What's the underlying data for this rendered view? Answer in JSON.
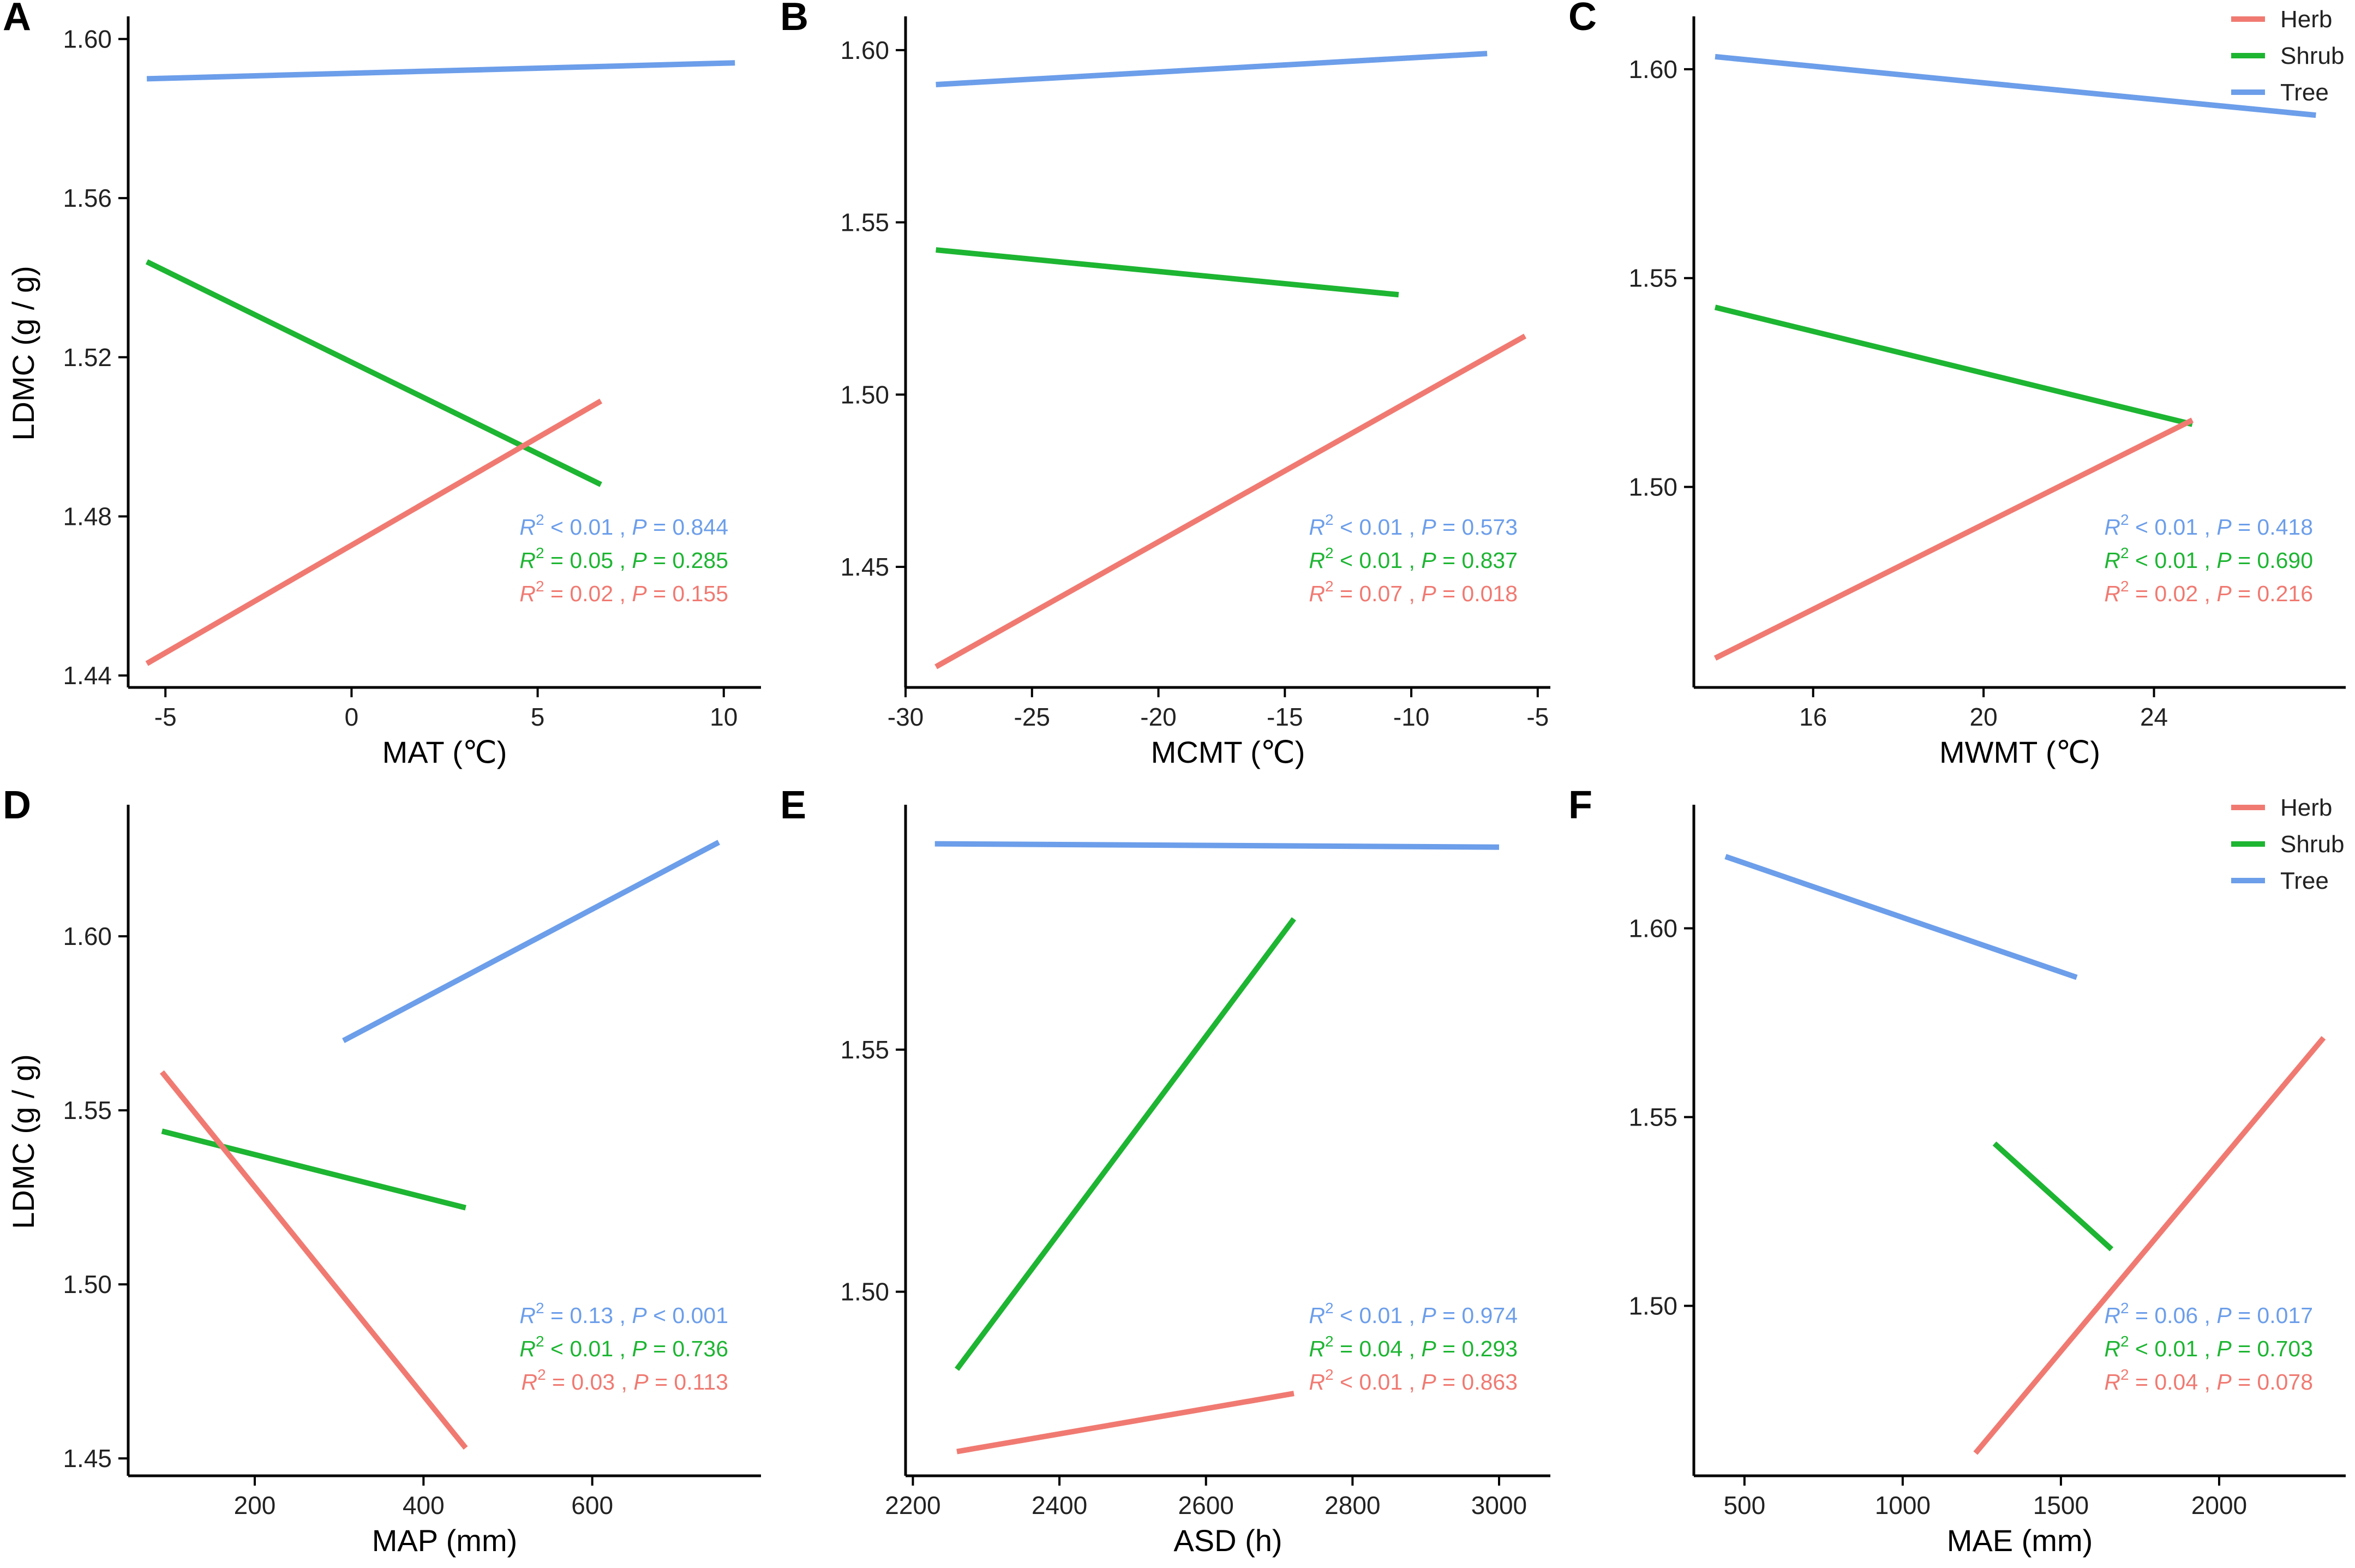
{
  "legend": {
    "title": "",
    "items": [
      {
        "label": "Herb",
        "color": "#F07A72"
      },
      {
        "label": "Shrub",
        "color": "#1DB532"
      },
      {
        "label": "Tree",
        "color": "#6C9EEA"
      }
    ]
  },
  "colors": {
    "herb": "#F07A72",
    "shrub": "#1DB532",
    "tree": "#6C9EEA",
    "axis": "#000000"
  },
  "chart_data": [
    {
      "panel": "A",
      "type": "line",
      "xlabel": "MAT (℃)",
      "ylabel": "LDMC (g / g)",
      "xlim": [
        -6,
        11
      ],
      "ylim": [
        1.437,
        1.605
      ],
      "xticks": [
        -5,
        0,
        5,
        10
      ],
      "xtick_labels": [
        "-5",
        "0",
        "5",
        "10"
      ],
      "yticks": [
        1.44,
        1.48,
        1.52,
        1.56,
        1.6
      ],
      "ytick_labels": [
        "1.44",
        "1.48",
        "1.52",
        "1.56",
        "1.60"
      ],
      "legend_shown": false,
      "series": [
        {
          "name": "Tree",
          "x": [
            -5.5,
            10.3
          ],
          "y": [
            1.59,
            1.594
          ]
        },
        {
          "name": "Shrub",
          "x": [
            -5.5,
            6.7
          ],
          "y": [
            1.544,
            1.488
          ]
        },
        {
          "name": "Herb",
          "x": [
            -5.5,
            6.7
          ],
          "y": [
            1.443,
            1.509
          ]
        }
      ],
      "annotations": [
        {
          "series": "Tree",
          "r2": "< 0.01",
          "p": "= 0.844"
        },
        {
          "series": "Shrub",
          "r2": "= 0.05",
          "p": "= 0.285"
        },
        {
          "series": "Herb",
          "r2": "= 0.02",
          "p": "= 0.155"
        }
      ]
    },
    {
      "panel": "B",
      "type": "line",
      "xlabel": "MCMT (℃)",
      "ylabel": "",
      "xlim": [
        -30,
        -4.5
      ],
      "ylim": [
        1.415,
        1.609
      ],
      "xticks": [
        -30,
        -25,
        -20,
        -15,
        -10,
        -5
      ],
      "xtick_labels": [
        "-30",
        "-25",
        "-20",
        "-15",
        "-10",
        "-5"
      ],
      "yticks": [
        1.45,
        1.5,
        1.55,
        1.6
      ],
      "ytick_labels": [
        "1.45",
        "1.50",
        "1.55",
        "1.60"
      ],
      "legend_shown": false,
      "series": [
        {
          "name": "Tree",
          "x": [
            -28.8,
            -7.0
          ],
          "y": [
            1.59,
            1.599
          ]
        },
        {
          "name": "Shrub",
          "x": [
            -28.8,
            -10.5
          ],
          "y": [
            1.542,
            1.529
          ]
        },
        {
          "name": "Herb",
          "x": [
            -28.8,
            -5.5
          ],
          "y": [
            1.421,
            1.517
          ]
        }
      ],
      "annotations": [
        {
          "series": "Tree",
          "r2": "< 0.01",
          "p": "= 0.573"
        },
        {
          "series": "Shrub",
          "r2": "< 0.01",
          "p": "= 0.837"
        },
        {
          "series": "Herb",
          "r2": "= 0.07",
          "p": "= 0.018"
        }
      ]
    },
    {
      "panel": "C",
      "type": "line",
      "xlabel": "MWMT (℃)",
      "ylabel": "",
      "xlim": [
        13.2,
        28.5
      ],
      "ylim": [
        1.452,
        1.612
      ],
      "xticks": [
        16,
        20,
        24
      ],
      "xtick_labels": [
        "16",
        "20",
        "24"
      ],
      "yticks": [
        1.5,
        1.55,
        1.6
      ],
      "ytick_labels": [
        "1.50",
        "1.55",
        "1.60"
      ],
      "legend_shown": true,
      "series": [
        {
          "name": "Tree",
          "x": [
            13.7,
            27.8
          ],
          "y": [
            1.603,
            1.589
          ]
        },
        {
          "name": "Shrub",
          "x": [
            13.7,
            24.9
          ],
          "y": [
            1.543,
            1.515
          ]
        },
        {
          "name": "Herb",
          "x": [
            13.7,
            24.9
          ],
          "y": [
            1.459,
            1.516
          ]
        }
      ],
      "annotations": [
        {
          "series": "Tree",
          "r2": "< 0.01",
          "p": "= 0.418"
        },
        {
          "series": "Shrub",
          "r2": "< 0.01",
          "p": "= 0.690"
        },
        {
          "series": "Herb",
          "r2": "= 0.02",
          "p": "= 0.216"
        }
      ]
    },
    {
      "panel": "D",
      "type": "line",
      "xlabel": "MAP (mm)",
      "ylabel": "LDMC (g / g)",
      "xlim": [
        50,
        800
      ],
      "ylim": [
        1.445,
        1.637
      ],
      "xticks": [
        200,
        400,
        600
      ],
      "xtick_labels": [
        "200",
        "400",
        "600"
      ],
      "yticks": [
        1.45,
        1.5,
        1.55,
        1.6
      ],
      "ytick_labels": [
        "1.45",
        "1.50",
        "1.55",
        "1.60"
      ],
      "legend_shown": false,
      "series": [
        {
          "name": "Tree",
          "x": [
            305,
            750
          ],
          "y": [
            1.57,
            1.627
          ]
        },
        {
          "name": "Shrub",
          "x": [
            90,
            450
          ],
          "y": [
            1.544,
            1.522
          ]
        },
        {
          "name": "Herb",
          "x": [
            90,
            450
          ],
          "y": [
            1.561,
            1.453
          ]
        }
      ],
      "annotations": [
        {
          "series": "Tree",
          "r2": "= 0.13",
          "p": "< 0.001"
        },
        {
          "series": "Shrub",
          "r2": "< 0.01",
          "p": "= 0.736"
        },
        {
          "series": "Herb",
          "r2": "= 0.03",
          "p": "= 0.113"
        }
      ]
    },
    {
      "panel": "E",
      "type": "line",
      "xlabel": "ASD (h)",
      "ylabel": "",
      "xlim": [
        2190,
        3070
      ],
      "ylim": [
        1.462,
        1.6
      ],
      "xticks": [
        2200,
        2400,
        2600,
        2800,
        3000
      ],
      "xtick_labels": [
        "2200",
        "2400",
        "2600",
        "2800",
        "3000"
      ],
      "yticks": [
        1.5,
        1.55
      ],
      "ytick_labels": [
        "1.50",
        "1.55"
      ],
      "legend_shown": false,
      "series": [
        {
          "name": "Tree",
          "x": [
            2230,
            3000
          ],
          "y": [
            1.5925,
            1.5918
          ]
        },
        {
          "name": "Shrub",
          "x": [
            2260,
            2720
          ],
          "y": [
            1.484,
            1.577
          ]
        },
        {
          "name": "Herb",
          "x": [
            2260,
            2720
          ],
          "y": [
            1.467,
            1.479
          ]
        }
      ],
      "annotations": [
        {
          "series": "Tree",
          "r2": "< 0.01",
          "p": "= 0.974"
        },
        {
          "series": "Shrub",
          "r2": "= 0.04",
          "p": "= 0.293"
        },
        {
          "series": "Herb",
          "r2": "< 0.01",
          "p": "= 0.863"
        }
      ]
    },
    {
      "panel": "F",
      "type": "line",
      "xlabel": "MAE (mm)",
      "ylabel": "",
      "xlim": [
        340,
        2400
      ],
      "ylim": [
        1.455,
        1.632
      ],
      "xticks": [
        500,
        1000,
        1500,
        2000
      ],
      "xtick_labels": [
        "500",
        "1000",
        "1500",
        "2000"
      ],
      "yticks": [
        1.5,
        1.55,
        1.6
      ],
      "ytick_labels": [
        "1.50",
        "1.55",
        "1.60"
      ],
      "legend_shown": true,
      "series": [
        {
          "name": "Tree",
          "x": [
            440,
            1550
          ],
          "y": [
            1.619,
            1.587
          ]
        },
        {
          "name": "Shrub",
          "x": [
            1290,
            1660
          ],
          "y": [
            1.543,
            1.515
          ]
        },
        {
          "name": "Herb",
          "x": [
            1230,
            2330
          ],
          "y": [
            1.461,
            1.571
          ]
        }
      ],
      "annotations": [
        {
          "series": "Tree",
          "r2": "= 0.06",
          "p": "= 0.017"
        },
        {
          "series": "Shrub",
          "r2": "< 0.01",
          "p": "= 0.703"
        },
        {
          "series": "Herb",
          "r2": "= 0.04",
          "p": "= 0.078"
        }
      ]
    }
  ]
}
